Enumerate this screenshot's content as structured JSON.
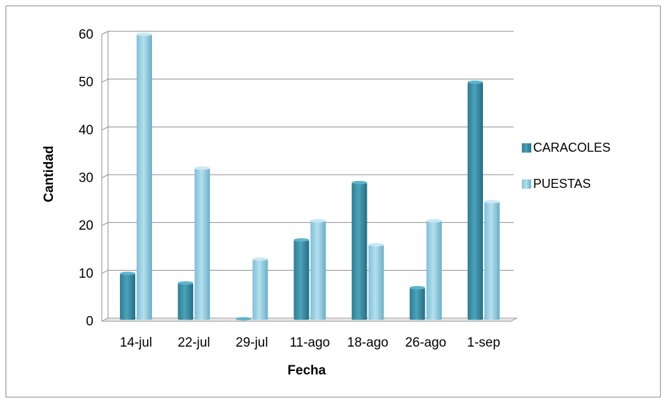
{
  "chart_data": {
    "type": "bar",
    "title": "",
    "xlabel": "Fecha",
    "ylabel": "Cantidad",
    "categories": [
      "14-jul",
      "22-jul",
      "29-jul",
      "11-ago",
      "18-ago",
      "26-ago",
      "1-sep"
    ],
    "series": [
      {
        "name": "CARACOLES",
        "values": [
          10,
          8,
          0.5,
          17,
          29,
          7,
          50
        ],
        "color": "#3a8fa6"
      },
      {
        "name": "PUESTAS",
        "values": [
          60,
          32,
          13,
          21,
          16,
          21,
          25
        ],
        "color": "#93cde1"
      }
    ],
    "ylim": [
      0,
      60
    ],
    "yticks": [
      0,
      10,
      20,
      30,
      40,
      50,
      60
    ],
    "grid": true,
    "legend_position": "right"
  }
}
